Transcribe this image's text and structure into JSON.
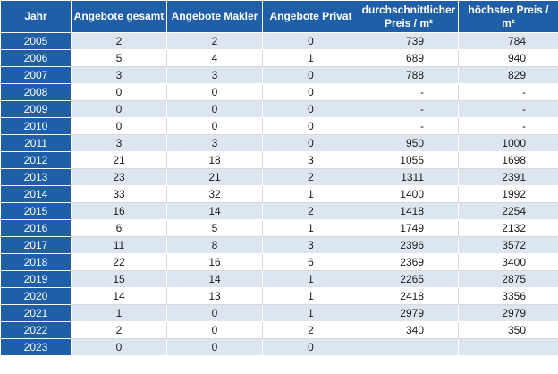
{
  "table": {
    "headers": {
      "year": "Jahr",
      "total": "Angebote gesamt",
      "broker": "Angebote Makler",
      "private": "Angebote Privat",
      "avg_price_line1": "durchschnittlicher",
      "avg_price_line2": "Preis / m²",
      "max_price": "höchster Preis / m²"
    },
    "rows": [
      {
        "year": "2005",
        "total": "2",
        "broker": "2",
        "private": "0",
        "avg": "739",
        "max": "784"
      },
      {
        "year": "2006",
        "total": "5",
        "broker": "4",
        "private": "1",
        "avg": "689",
        "max": "940"
      },
      {
        "year": "2007",
        "total": "3",
        "broker": "3",
        "private": "0",
        "avg": "788",
        "max": "829"
      },
      {
        "year": "2008",
        "total": "0",
        "broker": "0",
        "private": "0",
        "avg": "-",
        "max": "-"
      },
      {
        "year": "2009",
        "total": "0",
        "broker": "0",
        "private": "0",
        "avg": "-",
        "max": "-"
      },
      {
        "year": "2010",
        "total": "0",
        "broker": "0",
        "private": "0",
        "avg": "-",
        "max": "-"
      },
      {
        "year": "2011",
        "total": "3",
        "broker": "3",
        "private": "0",
        "avg": "950",
        "max": "1000"
      },
      {
        "year": "2012",
        "total": "21",
        "broker": "18",
        "private": "3",
        "avg": "1055",
        "max": "1698"
      },
      {
        "year": "2013",
        "total": "23",
        "broker": "21",
        "private": "2",
        "avg": "1311",
        "max": "2391"
      },
      {
        "year": "2014",
        "total": "33",
        "broker": "32",
        "private": "1",
        "avg": "1400",
        "max": "1992"
      },
      {
        "year": "2015",
        "total": "16",
        "broker": "14",
        "private": "2",
        "avg": "1418",
        "max": "2254"
      },
      {
        "year": "2016",
        "total": "6",
        "broker": "5",
        "private": "1",
        "avg": "1749",
        "max": "2132"
      },
      {
        "year": "2017",
        "total": "11",
        "broker": "8",
        "private": "3",
        "avg": "2396",
        "max": "3572"
      },
      {
        "year": "2018",
        "total": "22",
        "broker": "16",
        "private": "6",
        "avg": "2369",
        "max": "3400"
      },
      {
        "year": "2019",
        "total": "15",
        "broker": "14",
        "private": "1",
        "avg": "2265",
        "max": "2875"
      },
      {
        "year": "2020",
        "total": "14",
        "broker": "13",
        "private": "1",
        "avg": "2418",
        "max": "3356"
      },
      {
        "year": "2021",
        "total": "1",
        "broker": "0",
        "private": "1",
        "avg": "2979",
        "max": "2979"
      },
      {
        "year": "2022",
        "total": "2",
        "broker": "0",
        "private": "2",
        "avg": "340",
        "max": "350"
      },
      {
        "year": "2023",
        "total": "0",
        "broker": "0",
        "private": "0",
        "avg": "",
        "max": ""
      }
    ]
  },
  "colors": {
    "header_blue": "#1f5fa8",
    "row_stripe": "#dce6f1"
  }
}
